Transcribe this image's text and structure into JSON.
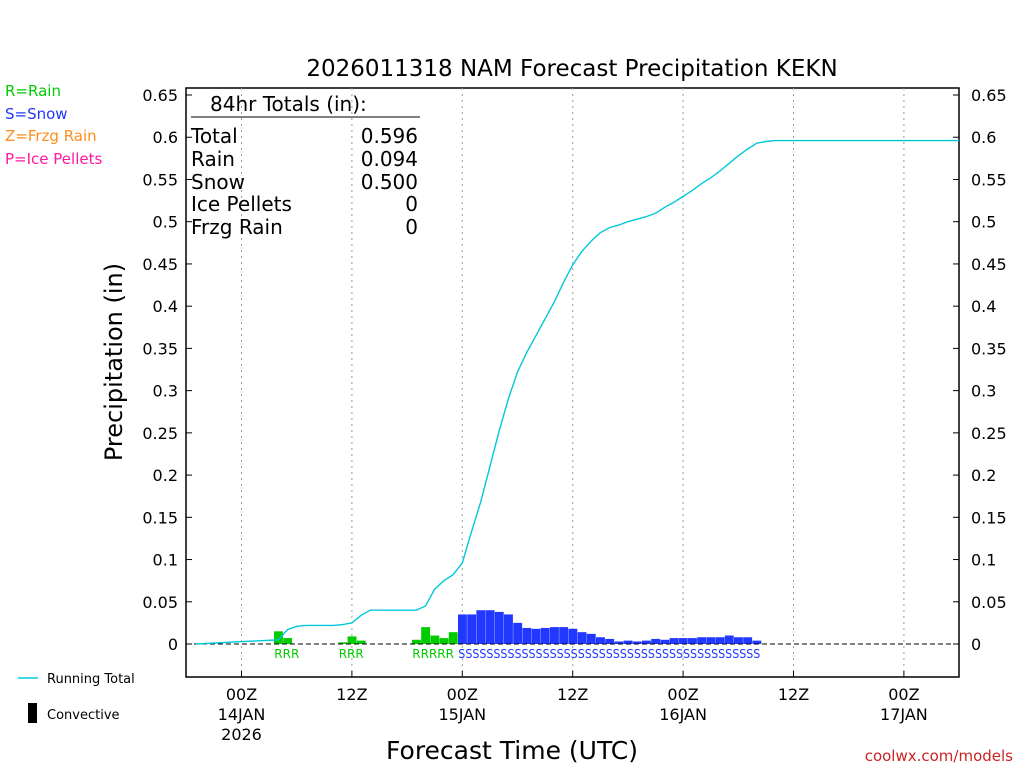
{
  "chart_data": {
    "type": "bar+line",
    "title": "2026011318 NAM Forecast Precipitation KEKN",
    "ylabel": "Precipitation (in)",
    "xlabel": "Forecast Time (UTC)",
    "ylim": [
      -0.04,
      0.66
    ],
    "xlim_hours": [
      -6,
      78
    ],
    "y_ticks": [
      "0.65",
      "0.6",
      "0.55",
      "0.5",
      "0.45",
      "0.4",
      "0.35",
      "0.3",
      "0.25",
      "0.2",
      "0.15",
      "0.1",
      "0.05",
      "0"
    ],
    "x_ticks": [
      {
        "hour": 0,
        "label": "00Z",
        "sub1": "14JAN",
        "sub2": "2026"
      },
      {
        "hour": 12,
        "label": "12Z",
        "sub1": "",
        "sub2": ""
      },
      {
        "hour": 24,
        "label": "00Z",
        "sub1": "15JAN",
        "sub2": ""
      },
      {
        "hour": 36,
        "label": "12Z",
        "sub1": "",
        "sub2": ""
      },
      {
        "hour": 48,
        "label": "00Z",
        "sub1": "16JAN",
        "sub2": ""
      },
      {
        "hour": 60,
        "label": "12Z",
        "sub1": "",
        "sub2": ""
      },
      {
        "hour": 72,
        "label": "00Z",
        "sub1": "17JAN",
        "sub2": ""
      }
    ],
    "legend_types": [
      {
        "code": "R",
        "label": "R=Rain",
        "color": "#00cc00"
      },
      {
        "code": "S",
        "label": "S=Snow",
        "color": "#2038ff"
      },
      {
        "code": "Z",
        "label": "Z=Frzg Rain",
        "color": "#ff8c1a"
      },
      {
        "code": "P",
        "label": "P=Ice Pellets",
        "color": "#ff1aa0"
      }
    ],
    "legend_lines": {
      "running_total": "Running Total",
      "convective": "Convective",
      "running_color": "#00c8d8"
    },
    "totals_box": {
      "header": "84hr Totals (in):",
      "rows": [
        {
          "label": "Total",
          "value": "0.596"
        },
        {
          "label": "Rain",
          "value": "0.094"
        },
        {
          "label": "Snow",
          "value": "0.500"
        },
        {
          "label": "Ice Pellets",
          "value": "0"
        },
        {
          "label": "Frzg Rain",
          "value": "0"
        }
      ]
    },
    "hourly_bars": [
      {
        "hour": 4,
        "value": 0.015,
        "type": "R"
      },
      {
        "hour": 5,
        "value": 0.007,
        "type": "R"
      },
      {
        "hour": 6,
        "value": 0.0,
        "type": "R"
      },
      {
        "hour": 11,
        "value": 0.002,
        "type": "R"
      },
      {
        "hour": 12,
        "value": 0.009,
        "type": "R"
      },
      {
        "hour": 13,
        "value": 0.004,
        "type": "R"
      },
      {
        "hour": 19,
        "value": 0.005,
        "type": "R"
      },
      {
        "hour": 20,
        "value": 0.02,
        "type": "R"
      },
      {
        "hour": 21,
        "value": 0.01,
        "type": "R"
      },
      {
        "hour": 22,
        "value": 0.007,
        "type": "R"
      },
      {
        "hour": 23,
        "value": 0.014,
        "type": "R"
      },
      {
        "hour": 24,
        "value": 0.035,
        "type": "S"
      },
      {
        "hour": 25,
        "value": 0.035,
        "type": "S"
      },
      {
        "hour": 26,
        "value": 0.04,
        "type": "S"
      },
      {
        "hour": 27,
        "value": 0.04,
        "type": "S"
      },
      {
        "hour": 28,
        "value": 0.038,
        "type": "S"
      },
      {
        "hour": 29,
        "value": 0.035,
        "type": "S"
      },
      {
        "hour": 30,
        "value": 0.025,
        "type": "S"
      },
      {
        "hour": 31,
        "value": 0.019,
        "type": "S"
      },
      {
        "hour": 32,
        "value": 0.018,
        "type": "S"
      },
      {
        "hour": 33,
        "value": 0.019,
        "type": "S"
      },
      {
        "hour": 34,
        "value": 0.02,
        "type": "S"
      },
      {
        "hour": 35,
        "value": 0.02,
        "type": "S"
      },
      {
        "hour": 36,
        "value": 0.018,
        "type": "S"
      },
      {
        "hour": 37,
        "value": 0.014,
        "type": "S"
      },
      {
        "hour": 38,
        "value": 0.012,
        "type": "S"
      },
      {
        "hour": 39,
        "value": 0.008,
        "type": "S"
      },
      {
        "hour": 40,
        "value": 0.006,
        "type": "S"
      },
      {
        "hour": 41,
        "value": 0.003,
        "type": "S"
      },
      {
        "hour": 42,
        "value": 0.004,
        "type": "S"
      },
      {
        "hour": 43,
        "value": 0.003,
        "type": "S"
      },
      {
        "hour": 44,
        "value": 0.004,
        "type": "S"
      },
      {
        "hour": 45,
        "value": 0.006,
        "type": "S"
      },
      {
        "hour": 46,
        "value": 0.005,
        "type": "S"
      },
      {
        "hour": 47,
        "value": 0.007,
        "type": "S"
      },
      {
        "hour": 48,
        "value": 0.007,
        "type": "S"
      },
      {
        "hour": 49,
        "value": 0.007,
        "type": "S"
      },
      {
        "hour": 50,
        "value": 0.008,
        "type": "S"
      },
      {
        "hour": 51,
        "value": 0.008,
        "type": "S"
      },
      {
        "hour": 52,
        "value": 0.008,
        "type": "S"
      },
      {
        "hour": 53,
        "value": 0.01,
        "type": "S"
      },
      {
        "hour": 54,
        "value": 0.008,
        "type": "S"
      },
      {
        "hour": 55,
        "value": 0.008,
        "type": "S"
      },
      {
        "hour": 56,
        "value": 0.004,
        "type": "S"
      }
    ],
    "running_total": {
      "x": [
        -5,
        4,
        5,
        6,
        7,
        8,
        9,
        10,
        11,
        12,
        13,
        14,
        15,
        16,
        17,
        18,
        19,
        20,
        21,
        22,
        23,
        24,
        25,
        26,
        27,
        28,
        29,
        30,
        31,
        32,
        33,
        34,
        35,
        36,
        37,
        38,
        39,
        40,
        41,
        42,
        43,
        44,
        45,
        46,
        47,
        48,
        49,
        50,
        51,
        52,
        53,
        54,
        55,
        56,
        57,
        58,
        78
      ],
      "y": [
        0,
        0.005,
        0.017,
        0.021,
        0.022,
        0.022,
        0.022,
        0.022,
        0.023,
        0.025,
        0.034,
        0.04,
        0.04,
        0.04,
        0.04,
        0.04,
        0.04,
        0.045,
        0.065,
        0.075,
        0.082,
        0.096,
        0.133,
        0.168,
        0.21,
        0.252,
        0.29,
        0.322,
        0.345,
        0.365,
        0.385,
        0.405,
        0.428,
        0.449,
        0.465,
        0.477,
        0.487,
        0.493,
        0.496,
        0.5,
        0.503,
        0.506,
        0.51,
        0.517,
        0.523,
        0.53,
        0.537,
        0.545,
        0.552,
        0.56,
        0.569,
        0.578,
        0.586,
        0.593,
        0.595,
        0.596,
        0.596
      ]
    },
    "type_label_strings": {
      "rain_1": "RRR",
      "rain_2": "RRR",
      "rain_3": "RRRRR",
      "snow": "SSSSSSSSSSSSSSSSSSSSSSSSSSSSSSSSSSSSSSSSSSS"
    },
    "watermark": "coolwx.com/models"
  }
}
